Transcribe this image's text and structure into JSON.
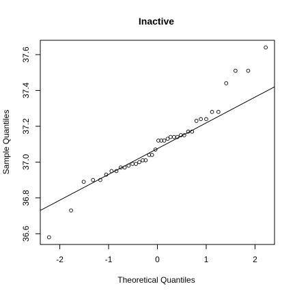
{
  "chart_data": {
    "type": "scatter",
    "title": "Inactive",
    "xlabel": "Theoretical Quantiles",
    "ylabel": "Sample Quantiles",
    "xlim": [
      -2.4,
      2.4
    ],
    "ylim": [
      36.54,
      37.68
    ],
    "x_ticks": [
      -2,
      -1,
      0,
      1,
      2
    ],
    "y_ticks": [
      36.6,
      36.8,
      37.0,
      37.2,
      37.4,
      37.6
    ],
    "x_tick_labels": [
      "-2",
      "-1",
      "0",
      "1",
      "2"
    ],
    "y_tick_labels": [
      "36.6",
      "36.8",
      "37.0",
      "37.2",
      "37.4",
      "37.6"
    ],
    "grid": false,
    "marker": "open-circle",
    "points": [
      {
        "x": -2.22,
        "y": 36.58
      },
      {
        "x": -1.77,
        "y": 36.73
      },
      {
        "x": -1.51,
        "y": 36.89
      },
      {
        "x": -1.32,
        "y": 36.9
      },
      {
        "x": -1.17,
        "y": 36.9
      },
      {
        "x": -1.05,
        "y": 36.93
      },
      {
        "x": -0.94,
        "y": 36.95
      },
      {
        "x": -0.84,
        "y": 36.95
      },
      {
        "x": -0.75,
        "y": 36.97
      },
      {
        "x": -0.67,
        "y": 36.97
      },
      {
        "x": -0.59,
        "y": 36.98
      },
      {
        "x": -0.51,
        "y": 36.99
      },
      {
        "x": -0.44,
        "y": 36.99
      },
      {
        "x": -0.37,
        "y": 37.0
      },
      {
        "x": -0.3,
        "y": 37.01
      },
      {
        "x": -0.24,
        "y": 37.01
      },
      {
        "x": -0.17,
        "y": 37.04
      },
      {
        "x": -0.11,
        "y": 37.04
      },
      {
        "x": -0.04,
        "y": 37.07
      },
      {
        "x": 0.02,
        "y": 37.12
      },
      {
        "x": 0.08,
        "y": 37.12
      },
      {
        "x": 0.14,
        "y": 37.12
      },
      {
        "x": 0.21,
        "y": 37.13
      },
      {
        "x": 0.27,
        "y": 37.14
      },
      {
        "x": 0.34,
        "y": 37.14
      },
      {
        "x": 0.41,
        "y": 37.14
      },
      {
        "x": 0.48,
        "y": 37.15
      },
      {
        "x": 0.55,
        "y": 37.15
      },
      {
        "x": 0.63,
        "y": 37.17
      },
      {
        "x": 0.71,
        "y": 37.17
      },
      {
        "x": 0.8,
        "y": 37.23
      },
      {
        "x": 0.89,
        "y": 37.24
      },
      {
        "x": 1.0,
        "y": 37.24
      },
      {
        "x": 1.12,
        "y": 37.28
      },
      {
        "x": 1.25,
        "y": 37.28
      },
      {
        "x": 1.41,
        "y": 37.44
      },
      {
        "x": 1.6,
        "y": 37.51
      },
      {
        "x": 1.86,
        "y": 37.51
      },
      {
        "x": 2.22,
        "y": 37.64
      }
    ],
    "reference_line": {
      "x": [
        -2.4,
        2.4
      ],
      "y": [
        36.73,
        37.42
      ]
    }
  }
}
